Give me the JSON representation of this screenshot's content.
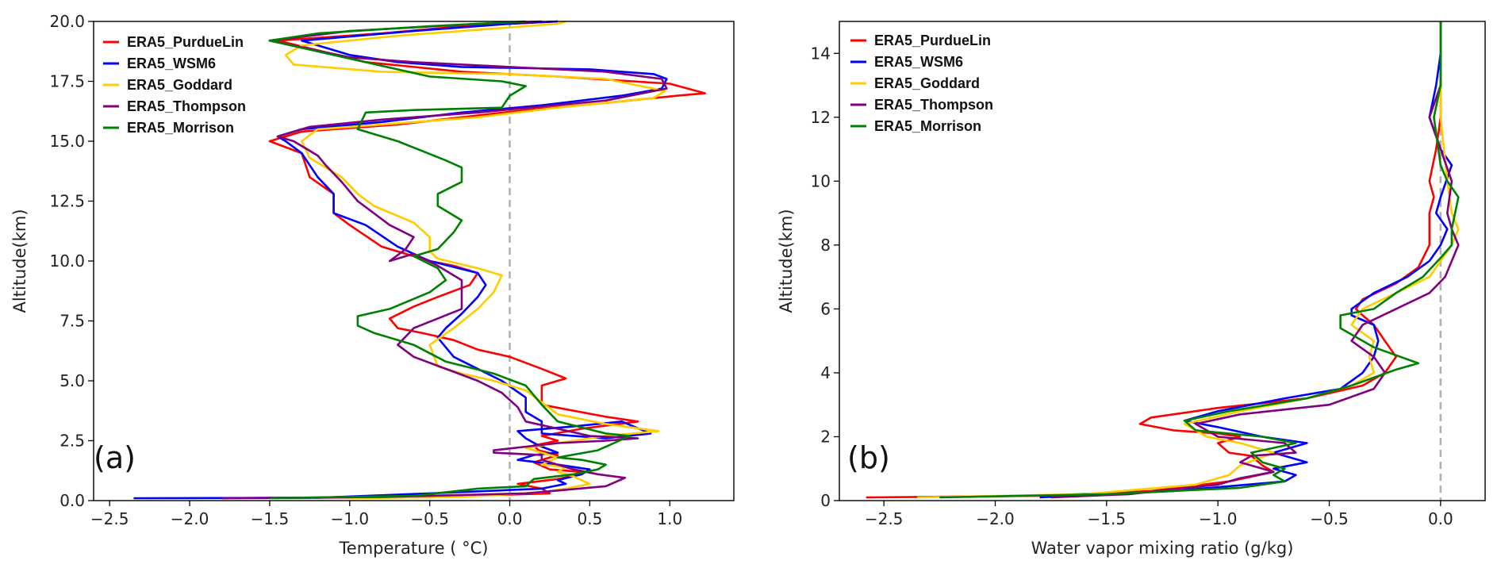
{
  "chart_data": [
    {
      "type": "line",
      "panel_label": "(a)",
      "xlabel": "Temperature ( °C)",
      "ylabel": "Altitude(km)",
      "xlim": [
        -2.6,
        1.4
      ],
      "ylim": [
        0,
        20
      ],
      "xticks": [
        -2.5,
        -2.0,
        -1.5,
        -1.0,
        -0.5,
        0.0,
        0.5,
        1.0
      ],
      "xtick_labels": [
        "−2.5",
        "−2.0",
        "−1.5",
        "−1.0",
        "−0.5",
        "0.0",
        "0.5",
        "1.0"
      ],
      "yticks": [
        0,
        2.5,
        5,
        7.5,
        10,
        12.5,
        15,
        17.5,
        20
      ],
      "ytick_labels": [
        "0.0",
        "2.5",
        "5.0",
        "7.5",
        "10.0",
        "12.5",
        "15.0",
        "17.5",
        "20.0"
      ],
      "reference_line": {
        "x": 0,
        "style": "dashed",
        "color": "#b0b0b0"
      },
      "legend": [
        "ERA5_PurdueLin",
        "ERA5_WSM6",
        "ERA5_Goddard",
        "ERA5_Thompson",
        "ERA5_Morrison"
      ],
      "series": [
        {
          "name": "ERA5_PurdueLin",
          "color": "#ff0000",
          "x": [
            -1.8,
            -0.5,
            0.25,
            0.2,
            0.05,
            0.3,
            0.45,
            0.45,
            0.25,
            0.15,
            0.3,
            0.18,
            0.15,
            0.3,
            0.2,
            0.45,
            0.8,
            0.6,
            0.2,
            0.2,
            0.2,
            0.35,
            0.2,
            0.0,
            -0.2,
            -0.35,
            -0.55,
            -0.7,
            -0.75,
            -0.6,
            -0.45,
            -0.25,
            -0.2,
            -0.35,
            -0.5,
            -0.8,
            -1.0,
            -1.1,
            -1.1,
            -1.25,
            -1.3,
            -1.5,
            -1.3,
            -0.7,
            -0.3,
            0.1,
            0.6,
            1.05,
            1.22,
            1.0,
            0.3,
            -0.3,
            -0.9,
            -1.45,
            -0.8,
            -0.3,
            0.3
          ],
          "y": [
            0.1,
            0.15,
            0.3,
            0.5,
            0.7,
            0.9,
            1.1,
            1.2,
            1.3,
            1.6,
            1.9,
            2.1,
            2.3,
            2.5,
            2.7,
            3.0,
            3.3,
            3.5,
            4.0,
            4.5,
            4.8,
            5.1,
            5.5,
            6.0,
            6.3,
            6.7,
            7.0,
            7.2,
            7.6,
            8.1,
            8.5,
            9.0,
            9.5,
            9.8,
            10.0,
            10.6,
            11.5,
            12.0,
            12.8,
            13.5,
            14.5,
            15.0,
            15.4,
            15.7,
            16.0,
            16.3,
            16.6,
            16.9,
            17.0,
            17.4,
            17.7,
            17.9,
            18.3,
            19.2,
            19.5,
            19.8,
            20.0
          ]
        },
        {
          "name": "ERA5_WSM6",
          "color": "#0000ff",
          "x": [
            -2.35,
            -1.2,
            -0.5,
            0.2,
            0.35,
            0.3,
            0.45,
            0.5,
            0.3,
            0.05,
            0.15,
            0.3,
            0.18,
            0.1,
            0.05,
            0.4,
            0.7,
            0.88,
            0.6,
            0.2,
            0.2,
            0.1,
            0.1,
            -0.05,
            -0.2,
            -0.35,
            -0.45,
            -0.4,
            -0.3,
            -0.2,
            -0.15,
            -0.2,
            -0.5,
            -0.7,
            -0.9,
            -1.1,
            -1.1,
            -1.2,
            -1.25,
            -1.3,
            -1.4,
            -1.45,
            -1.3,
            -0.8,
            -0.3,
            0.2,
            0.7,
            0.95,
            0.98,
            0.9,
            0.5,
            -0.3,
            -0.7,
            -1.0,
            -1.3,
            -0.6,
            0.0,
            0.3
          ],
          "y": [
            0.1,
            0.12,
            0.3,
            0.5,
            0.7,
            0.85,
            1.1,
            1.3,
            1.5,
            1.7,
            1.9,
            2.0,
            2.3,
            2.6,
            2.9,
            3.1,
            3.3,
            2.8,
            2.6,
            2.8,
            3.3,
            3.7,
            4.3,
            5.0,
            5.5,
            6.0,
            6.8,
            7.2,
            7.8,
            8.5,
            9.0,
            9.5,
            10.0,
            10.6,
            11.5,
            12.0,
            12.8,
            13.5,
            14.0,
            14.5,
            15.0,
            15.2,
            15.5,
            15.8,
            16.2,
            16.5,
            16.9,
            17.2,
            17.6,
            17.8,
            18.0,
            18.1,
            18.3,
            18.6,
            19.2,
            19.6,
            19.9,
            20.0
          ]
        },
        {
          "name": "ERA5_Goddard",
          "color": "#ffcc00",
          "x": [
            -1.0,
            -0.3,
            0.2,
            0.35,
            0.5,
            0.4,
            0.3,
            0.35,
            0.2,
            0.3,
            0.2,
            0.1,
            0.3,
            0.6,
            0.93,
            0.6,
            0.3,
            0.2,
            0.1,
            -0.1,
            -0.3,
            -0.45,
            -0.5,
            -0.35,
            -0.2,
            -0.1,
            -0.05,
            -0.2,
            -0.45,
            -0.5,
            -0.5,
            -0.6,
            -0.85,
            -0.95,
            -1.05,
            -1.25,
            -1.3,
            -1.2,
            -0.8,
            -0.2,
            0.3,
            0.9,
            0.97,
            0.6,
            0.0,
            -0.8,
            -1.35,
            -1.4,
            -1.3,
            -0.7,
            0.3,
            0.35
          ],
          "y": [
            0.1,
            0.15,
            0.35,
            0.5,
            0.7,
            1.0,
            1.2,
            1.4,
            1.5,
            1.8,
            2.0,
            2.2,
            2.4,
            2.7,
            2.9,
            3.2,
            3.6,
            4.1,
            4.6,
            5.0,
            5.3,
            5.6,
            6.5,
            7.2,
            8.0,
            8.7,
            9.4,
            9.7,
            10.1,
            10.4,
            11.0,
            11.6,
            12.3,
            12.8,
            13.5,
            14.3,
            15.0,
            15.5,
            15.7,
            16.0,
            16.4,
            16.8,
            17.1,
            17.6,
            17.8,
            17.9,
            18.2,
            18.6,
            19.0,
            19.4,
            19.9,
            20.0
          ]
        },
        {
          "name": "ERA5_Thompson",
          "color": "#800080",
          "x": [
            -1.8,
            -0.8,
            0.1,
            0.6,
            0.72,
            0.55,
            0.4,
            0.3,
            0.2,
            0.2,
            -0.1,
            -0.1,
            0.3,
            0.6,
            0.8,
            0.5,
            0.1,
            0.05,
            -0.05,
            -0.2,
            -0.4,
            -0.6,
            -0.7,
            -0.6,
            -0.3,
            -0.3,
            -0.45,
            -0.6,
            -0.75,
            -0.65,
            -0.6,
            -0.75,
            -0.95,
            -1.05,
            -1.15,
            -1.2,
            -1.35,
            -1.45,
            -1.25,
            -0.8,
            -0.2,
            0.6,
            0.98,
            0.95,
            0.6,
            0.0,
            -0.6,
            -1.0,
            -1.5,
            -1.0,
            -0.2,
            0.2
          ],
          "y": [
            0.1,
            0.15,
            0.3,
            0.6,
            0.95,
            1.1,
            1.3,
            1.5,
            1.7,
            1.9,
            2.0,
            2.1,
            2.4,
            2.5,
            2.6,
            2.7,
            3.3,
            3.9,
            4.5,
            5.0,
            5.5,
            6.0,
            6.5,
            7.2,
            8.0,
            9.2,
            9.8,
            10.3,
            10.0,
            10.5,
            11.0,
            11.5,
            12.5,
            13.3,
            14.0,
            14.4,
            15.0,
            15.2,
            15.6,
            15.9,
            16.2,
            16.7,
            17.2,
            17.6,
            17.9,
            18.1,
            18.3,
            18.5,
            19.2,
            19.6,
            19.9,
            20.0
          ]
        },
        {
          "name": "ERA5_Morrison",
          "color": "#008000",
          "x": [
            -1.5,
            -0.6,
            -0.2,
            0.1,
            0.15,
            0.4,
            0.55,
            0.6,
            0.45,
            0.3,
            0.55,
            0.75,
            0.6,
            0.3,
            0.2,
            0.1,
            -0.1,
            -0.4,
            -0.6,
            -0.85,
            -0.95,
            -0.95,
            -0.75,
            -0.5,
            -0.4,
            -0.45,
            -0.6,
            -0.45,
            -0.35,
            -0.3,
            -0.45,
            -0.45,
            -0.3,
            -0.3,
            -0.4,
            -0.55,
            -0.7,
            -0.95,
            -0.9,
            -0.6,
            -0.05,
            0.0,
            0.1,
            -0.05,
            -0.5,
            -1.5,
            -1.2,
            -0.5,
            0.1
          ],
          "y": [
            0.1,
            0.2,
            0.5,
            0.6,
            0.9,
            1.1,
            1.3,
            1.5,
            1.7,
            1.8,
            2.1,
            2.7,
            2.8,
            3.3,
            4.0,
            4.8,
            5.3,
            5.8,
            6.5,
            7.0,
            7.3,
            7.7,
            8.0,
            8.7,
            9.2,
            9.7,
            10.2,
            10.5,
            11.2,
            11.7,
            12.3,
            12.8,
            13.3,
            13.9,
            14.2,
            14.6,
            15.0,
            15.5,
            16.2,
            16.3,
            16.4,
            16.9,
            17.3,
            17.5,
            17.7,
            19.2,
            19.5,
            19.8,
            20.0
          ]
        }
      ]
    },
    {
      "type": "line",
      "panel_label": "(b)",
      "xlabel": "Water vapor mixing ratio (g/kg)",
      "ylabel": "Altitude(km)",
      "xlim": [
        -2.7,
        0.2
      ],
      "ylim": [
        0,
        15
      ],
      "xticks": [
        -2.5,
        -2.0,
        -1.5,
        -1.0,
        -0.5,
        0.0
      ],
      "xtick_labels": [
        "−2.5",
        "−2.0",
        "−1.5",
        "−1.0",
        "−0.5",
        "0.0"
      ],
      "yticks": [
        0,
        2,
        4,
        6,
        8,
        10,
        12,
        14
      ],
      "ytick_labels": [
        "0",
        "2",
        "4",
        "6",
        "8",
        "10",
        "12",
        "14"
      ],
      "reference_line": {
        "x": 0,
        "style": "dashed",
        "color": "#b0b0b0"
      },
      "legend": [
        "ERA5_PurdueLin",
        "ERA5_WSM6",
        "ERA5_Goddard",
        "ERA5_Thompson",
        "ERA5_Morrison"
      ],
      "series": [
        {
          "name": "ERA5_PurdueLin",
          "color": "#ff0000",
          "x": [
            -2.58,
            -1.8,
            -1.3,
            -0.95,
            -0.75,
            -0.8,
            -0.85,
            -0.95,
            -1.0,
            -0.9,
            -1.0,
            -1.2,
            -1.35,
            -1.3,
            -1.0,
            -0.6,
            -0.35,
            -0.25,
            -0.2,
            -0.25,
            -0.3,
            -0.35,
            -0.38,
            -0.35,
            -0.2,
            -0.1,
            -0.05,
            -0.05,
            -0.03,
            -0.05,
            -0.02,
            0.0,
            0.0
          ],
          "y": [
            0.1,
            0.15,
            0.3,
            0.6,
            0.9,
            1.1,
            1.4,
            1.5,
            1.8,
            2.0,
            2.1,
            2.2,
            2.4,
            2.6,
            2.9,
            3.2,
            3.6,
            4.0,
            4.5,
            5.0,
            5.5,
            5.8,
            6.0,
            6.3,
            6.8,
            7.3,
            8.0,
            9.0,
            9.5,
            10.0,
            11.0,
            12.0,
            15.0
          ]
        },
        {
          "name": "ERA5_WSM6",
          "color": "#0000ff",
          "x": [
            -1.8,
            -1.2,
            -0.7,
            -0.65,
            -0.75,
            -0.6,
            -0.75,
            -0.6,
            -0.8,
            -1.0,
            -1.15,
            -1.0,
            -0.7,
            -0.45,
            -0.35,
            -0.3,
            -0.28,
            -0.3,
            -0.4,
            -0.4,
            -0.3,
            -0.15,
            -0.05,
            0.0,
            0.03,
            -0.02,
            0.0,
            0.05,
            0.0,
            -0.05,
            -0.02,
            0.0,
            0.0
          ],
          "y": [
            0.1,
            0.3,
            0.6,
            0.8,
            1.0,
            1.2,
            1.5,
            1.8,
            2.0,
            2.3,
            2.5,
            2.8,
            3.2,
            3.5,
            4.0,
            4.5,
            5.0,
            5.5,
            5.8,
            6.0,
            6.5,
            7.0,
            7.5,
            8.0,
            8.5,
            9.0,
            9.5,
            10.5,
            11.0,
            12.0,
            13.0,
            14.0,
            15.0
          ]
        },
        {
          "name": "ERA5_Goddard",
          "color": "#ffcc00",
          "x": [
            -2.35,
            -1.6,
            -1.1,
            -0.95,
            -0.9,
            -0.75,
            -0.9,
            -1.05,
            -1.15,
            -0.9,
            -0.6,
            -0.4,
            -0.3,
            -0.32,
            -0.3,
            -0.4,
            -0.35,
            -0.2,
            -0.05,
            0.0,
            0.05,
            0.08,
            0.05,
            0.03,
            0.0,
            0.0
          ],
          "y": [
            0.1,
            0.2,
            0.5,
            0.8,
            1.1,
            1.5,
            1.8,
            2.0,
            2.4,
            2.8,
            3.2,
            3.6,
            4.0,
            4.5,
            5.0,
            5.5,
            6.0,
            6.5,
            7.0,
            7.5,
            8.0,
            8.5,
            9.0,
            10.0,
            12.0,
            15.0
          ]
        },
        {
          "name": "ERA5_Thompson",
          "color": "#800080",
          "x": [
            -1.75,
            -1.4,
            -1.0,
            -0.9,
            -0.75,
            -0.9,
            -0.85,
            -0.65,
            -0.7,
            -0.85,
            -1.0,
            -1.1,
            -0.9,
            -0.5,
            -0.3,
            -0.25,
            -0.3,
            -0.4,
            -0.35,
            -0.2,
            -0.05,
            0.02,
            0.05,
            0.08,
            0.05,
            0.03,
            0.05,
            0.0,
            -0.05,
            0.0,
            0.0
          ],
          "y": [
            0.1,
            0.2,
            0.5,
            0.7,
            0.9,
            1.2,
            1.4,
            1.5,
            1.8,
            1.9,
            2.0,
            2.4,
            2.7,
            3.0,
            3.5,
            4.0,
            4.5,
            5.0,
            5.5,
            6.0,
            6.5,
            7.0,
            7.5,
            8.0,
            8.5,
            9.0,
            10.0,
            11.0,
            12.0,
            13.0,
            15.0
          ]
        },
        {
          "name": "ERA5_Morrison",
          "color": "#008000",
          "x": [
            -2.25,
            -1.5,
            -0.9,
            -0.7,
            -0.75,
            -0.7,
            -0.8,
            -0.85,
            -0.65,
            -0.8,
            -1.1,
            -1.15,
            -0.95,
            -0.6,
            -0.4,
            -0.2,
            -0.1,
            -0.3,
            -0.45,
            -0.45,
            -0.3,
            -0.2,
            -0.08,
            0.0,
            0.05,
            0.05,
            0.08,
            0.03,
            0.0,
            -0.03,
            0.0,
            0.0
          ],
          "y": [
            0.1,
            0.2,
            0.4,
            0.6,
            0.8,
            1.0,
            1.2,
            1.5,
            1.8,
            2.0,
            2.2,
            2.5,
            2.8,
            3.2,
            3.6,
            4.1,
            4.3,
            4.8,
            5.4,
            5.8,
            6.0,
            6.5,
            7.0,
            7.6,
            8.0,
            8.5,
            9.5,
            10.0,
            10.5,
            12.0,
            13.0,
            15.0
          ]
        }
      ]
    }
  ]
}
